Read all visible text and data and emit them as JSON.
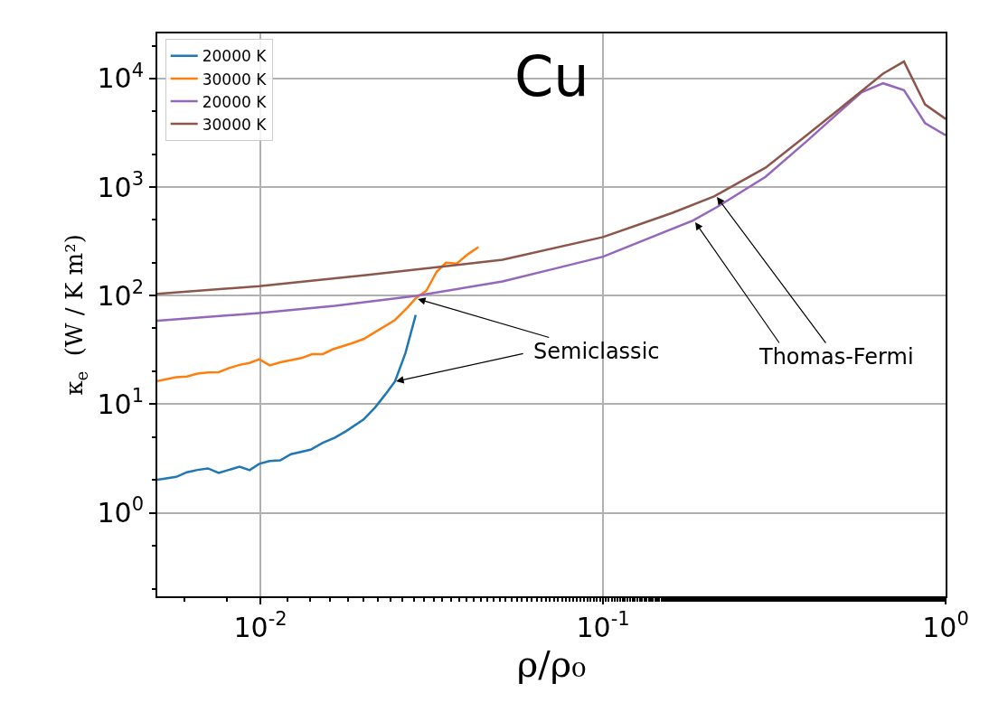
{
  "chart_data": {
    "type": "line",
    "title": "Cu",
    "xlabel": "ρ/ρ₀",
    "ylabel": "κ$_{e}$  (W / K m²)",
    "log": "xy",
    "grid": true,
    "legend": "top left",
    "marker": "none",
    "line_style": "solid",
    "xlim": [
      0.005,
      1
    ],
    "ylim": [
      0.17,
      26000
    ],
    "xticks": [
      {
        "value": 0.01,
        "label": "10$^{-2}$"
      },
      {
        "value": 0.1,
        "label": "10$^{-1}$"
      },
      {
        "value": 1,
        "label": "10$^{0}$"
      }
    ],
    "yticks": [
      {
        "value": 1,
        "label": "10$^{0}$"
      },
      {
        "value": 10,
        "label": "10$^{1}$"
      },
      {
        "value": 100,
        "label": "10$^{2}$"
      },
      {
        "value": 1000,
        "label": "10$^{3}$"
      },
      {
        "value": 10000,
        "label": "10$^{4}$"
      }
    ],
    "series": [
      {
        "name": "20000 K",
        "color": "#1f77b4",
        "x": [
          0.005,
          0.00568,
          0.0061,
          0.00655,
          0.00703,
          0.00755,
          0.00869,
          0.0093,
          0.00992,
          0.01064,
          0.01143,
          0.01227,
          0.014,
          0.0152,
          0.0165,
          0.0178,
          0.02,
          0.0216,
          0.0232,
          0.0247,
          0.0265,
          0.0284
        ],
        "values": [
          2.01,
          2.14,
          2.36,
          2.48,
          2.56,
          2.33,
          2.65,
          2.47,
          2.82,
          3.0,
          3.04,
          3.46,
          3.81,
          4.41,
          4.92,
          5.65,
          7.22,
          9.31,
          12.4,
          16.2,
          29.5,
          66.4
        ]
      },
      {
        "name": "30000 K",
        "color": "#ff7f0e",
        "x": [
          0.005,
          0.00568,
          0.0061,
          0.00655,
          0.00703,
          0.00755,
          0.0081,
          0.00869,
          0.0093,
          0.00992,
          0.01064,
          0.01143,
          0.01317,
          0.01414,
          0.0152,
          0.01629,
          0.0184,
          0.02,
          0.0216,
          0.0247,
          0.0268,
          0.0284,
          0.0305,
          0.0327,
          0.0348,
          0.0374,
          0.0405,
          0.0433
        ],
        "values": [
          16.3,
          17.7,
          18.0,
          19.1,
          19.6,
          19.7,
          21.5,
          23.0,
          24.0,
          25.9,
          22.8,
          24.3,
          26.6,
          28.9,
          28.9,
          32.1,
          36.2,
          39.8,
          46.1,
          59.6,
          76.9,
          94.4,
          111,
          166,
          201,
          197,
          243,
          280
        ]
      },
      {
        "name": "20000 K",
        "color": "#9467bd",
        "x": [
          0.005,
          0.00992,
          0.0165,
          0.0284,
          0.0509,
          0.0722,
          0.1,
          0.183,
          0.2155,
          0.298,
          0.395,
          0.484,
          0.569,
          0.657,
          0.756,
          0.871,
          1.0
        ],
        "values": [
          58.8,
          69,
          80.5,
          99.4,
          135,
          177,
          228,
          492,
          656,
          1242,
          2676,
          4757,
          7458,
          9030,
          7795,
          3880,
          3002
        ]
      },
      {
        "name": "30000 K",
        "color": "#8c564b",
        "x": [
          0.005,
          0.00992,
          0.0206,
          0.0509,
          0.1,
          0.159,
          0.211,
          0.298,
          0.395,
          0.484,
          0.657,
          0.756,
          0.871,
          1.0
        ],
        "values": [
          104,
          122,
          155,
          214,
          346,
          577,
          821,
          1505,
          3041,
          5081,
          11090,
          14330,
          5770,
          4241
        ]
      }
    ],
    "annotations": [
      {
        "text": "Semiclassic",
        "x": 0.0288,
        "y": 93
      },
      {
        "text": "Thomas-Fermi",
        "x": 0.215,
        "y": 810
      }
    ]
  }
}
